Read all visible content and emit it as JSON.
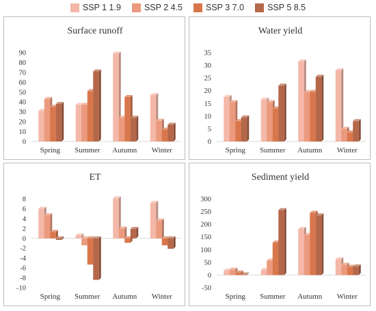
{
  "legend": [
    {
      "label": "SSP 1 1.9",
      "color": "#f4b8a8"
    },
    {
      "label": "SSP 2 4.5",
      "color": "#ec9a7d"
    },
    {
      "label": "SSP 3 7.0",
      "color": "#d9774c"
    },
    {
      "label": "SSP 5 8.5",
      "color": "#b5674a"
    }
  ],
  "chart_data": [
    {
      "type": "bar",
      "title": "Surface runoff",
      "categories": [
        "Spring",
        "Summer",
        "Autumn",
        "Winter"
      ],
      "series": [
        {
          "name": "SSP 1 1.9",
          "values": [
            31,
            37,
            89,
            47
          ]
        },
        {
          "name": "SSP 2 4.5",
          "values": [
            43,
            37,
            24,
            21
          ]
        },
        {
          "name": "SSP 3 7.0",
          "values": [
            35,
            51,
            45,
            12
          ]
        },
        {
          "name": "SSP 5 8.5",
          "values": [
            38,
            71,
            24,
            17
          ]
        }
      ],
      "ylim": [
        0,
        90
      ],
      "yticks": [
        "0",
        "10",
        "20",
        "30",
        "40",
        "50",
        "60",
        "70",
        "80",
        "90"
      ]
    },
    {
      "type": "bar",
      "title": "Water yield",
      "categories": [
        "Spring",
        "Summer",
        "Autumn",
        "Winter"
      ],
      "series": [
        {
          "name": "SSP 1 1.9",
          "values": [
            17.5,
            16.5,
            31.5,
            28
          ]
        },
        {
          "name": "SSP 2 4.5",
          "values": [
            15.5,
            15.5,
            19.5,
            5
          ]
        },
        {
          "name": "SSP 3 7.0",
          "values": [
            8,
            13,
            19.5,
            3.5
          ]
        },
        {
          "name": "SSP 5 8.5",
          "values": [
            9.5,
            22,
            25.5,
            8
          ]
        }
      ],
      "ylim": [
        0,
        35
      ],
      "yticks": [
        "0",
        "5",
        "10",
        "15",
        "20",
        "25",
        "30",
        "35"
      ]
    },
    {
      "type": "bar",
      "title": "ET",
      "categories": [
        "Spring",
        "Summer",
        "Autumn",
        "Winter"
      ],
      "series": [
        {
          "name": "SSP 1 1.9",
          "values": [
            6,
            0.6,
            8.1,
            7.2
          ]
        },
        {
          "name": "SSP 2 4.5",
          "values": [
            4.7,
            -1.4,
            2,
            3.6
          ]
        },
        {
          "name": "SSP 3 7.0",
          "values": [
            1.3,
            -5.3,
            -0.9,
            -1.4
          ]
        },
        {
          "name": "SSP 5 8.5",
          "values": [
            -0.3,
            -8.4,
            1.9,
            -2.1
          ]
        }
      ],
      "ylim": [
        -10,
        8
      ],
      "yticks": [
        "-10",
        "-8",
        "-6",
        "-4",
        "-2",
        "0",
        "2",
        "4",
        "6",
        "8"
      ]
    },
    {
      "type": "bar",
      "title": "Sediment yield",
      "categories": [
        "Spring",
        "Summer",
        "Autumn",
        "Winter"
      ],
      "series": [
        {
          "name": "SSP 1 1.9",
          "values": [
            18,
            20,
            182,
            62
          ]
        },
        {
          "name": "SSP 2 4.5",
          "values": [
            21,
            57,
            158,
            41
          ]
        },
        {
          "name": "SSP 3 7.0",
          "values": [
            10,
            128,
            245,
            32
          ]
        },
        {
          "name": "SSP 5 8.5",
          "values": [
            2,
            256,
            235,
            34
          ]
        }
      ],
      "ylim": [
        -50,
        300
      ],
      "yticks": [
        "-50",
        "0",
        "50",
        "100",
        "150",
        "200",
        "250",
        "300"
      ]
    }
  ]
}
